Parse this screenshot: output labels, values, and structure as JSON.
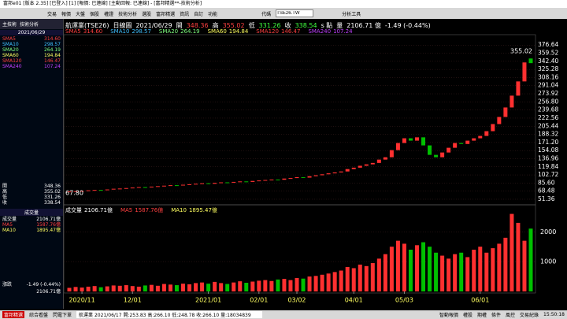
{
  "window": {
    "title": "富邦e01 [版本 2.35] [已登入] [1] [報價: 已連線] [主動回報: 已連線] - [富邦精選**-技術分析]"
  },
  "menu": [
    "交易",
    "報價",
    "大盤",
    "個股",
    "權證",
    "技術分析",
    "選股",
    "富邦精選",
    "資訊",
    "自訂",
    "功能"
  ],
  "symbol_label": "代碼",
  "symbol_input": "TSE26.TW",
  "tool": "分析工具",
  "left": {
    "tabs": [
      "主技術",
      "技術分析"
    ],
    "date": "2021/06/29",
    "sma": [
      {
        "name": "SMA5",
        "value": "314.60",
        "color": "#ff4040"
      },
      {
        "name": "SMA10",
        "value": "298.57",
        "color": "#40c0ff"
      },
      {
        "name": "SMA20",
        "value": "264.19",
        "color": "#80ff80"
      },
      {
        "name": "SMA60",
        "value": "194.84",
        "color": "#ffff60"
      },
      {
        "name": "SMA120",
        "value": "146.47",
        "color": "#ff4040"
      },
      {
        "name": "SMA240",
        "value": "107.24",
        "color": "#c040ff"
      }
    ],
    "ohlc": [
      {
        "label": "開",
        "value": "348.36"
      },
      {
        "label": "高",
        "value": "355.02"
      },
      {
        "label": "低",
        "value": "331.26"
      },
      {
        "label": "收",
        "value": "338.54"
      }
    ],
    "volume_title": "成交量",
    "vol": [
      {
        "name": "成交量",
        "value": "2106.71億",
        "color": "#ffffff"
      },
      {
        "name": "MA5",
        "value": "1587.76億",
        "color": "#ff4040"
      },
      {
        "name": "MA10",
        "value": "1895.47億",
        "color": "#ffff60"
      }
    ],
    "change": {
      "label": "漲跌",
      "value": "-1.49 (-0.44%)",
      "volume": "2106.71億"
    }
  },
  "header": [
    {
      "text": "航運業(TSE26)",
      "color": "#ffffff"
    },
    {
      "text": "日線圖",
      "color": "#ffffff"
    },
    {
      "text": "2021/06/29",
      "color": "#ffffff"
    },
    {
      "text": "開",
      "color": "#ffffff"
    },
    {
      "text": "348.36",
      "color": "#ff4040"
    },
    {
      "text": "高",
      "color": "#ffffff"
    },
    {
      "text": "355.02",
      "color": "#ff4040"
    },
    {
      "text": "低",
      "color": "#ffffff"
    },
    {
      "text": "331.26",
      "color": "#40ff40"
    },
    {
      "text": "收",
      "color": "#ffffff"
    },
    {
      "text": "338.54",
      "color": "#40ff40"
    },
    {
      "text": "s 點",
      "color": "#ffffff"
    },
    {
      "text": "量",
      "color": "#ffffff"
    },
    {
      "text": "2106.71 億",
      "color": "#ffffff"
    },
    {
      "text": "-1.49 (-0.44%)",
      "color": "#ffffff"
    }
  ],
  "chart": {
    "last_high": "355.02",
    "first_low": "67.80",
    "ylim": [
      43,
      392
    ],
    "yticks": [
      376.64,
      359.52,
      {
        "value": 342.4,
        "label": "342.40"
      },
      325.28,
      308.16,
      291.04,
      273.92,
      {
        "value": 256.8,
        "label": "256.80"
      },
      239.68,
      222.56,
      205.44,
      188.32,
      {
        "value": 171.2,
        "label": "171.20"
      },
      154.08,
      136.96,
      119.84,
      102.72,
      {
        "value": 85.6,
        "label": "85.60"
      },
      68.48,
      51.36
    ],
    "vlim": [
      0,
      2800
    ],
    "vticks": [
      2000,
      1000
    ],
    "up_color": "#ff3030",
    "down_color": "#00c000",
    "categories": [
      null,
      null,
      "2020/11",
      null,
      null,
      null,
      null,
      null,
      null,
      null,
      "12/01",
      null,
      null,
      null,
      null,
      null,
      null,
      null,
      null,
      null,
      null,
      null,
      "2021/01",
      null,
      null,
      null,
      null,
      null,
      null,
      null,
      "02/01",
      null,
      null,
      null,
      null,
      null,
      "03/02",
      null,
      null,
      null,
      null,
      null,
      null,
      null,
      null,
      "04/01",
      null,
      null,
      null,
      null,
      null,
      null,
      null,
      "05/03",
      null,
      null,
      null,
      null,
      null,
      null,
      null,
      null,
      null,
      null,
      null,
      "06/01",
      null,
      null,
      null,
      null,
      null,
      null,
      null,
      null
    ],
    "open": [
      67,
      67.8,
      68.5,
      69,
      70.2,
      71,
      70.5,
      72,
      73.5,
      74,
      75,
      76,
      77,
      76.5,
      78,
      79,
      80,
      81,
      80.5,
      82,
      83,
      84,
      85,
      84,
      86,
      87,
      86.5,
      88,
      89,
      88,
      90,
      91,
      92,
      93,
      92.5,
      95,
      96,
      98,
      97,
      100,
      102,
      104,
      106,
      108,
      110,
      115,
      118,
      122,
      125,
      128,
      135,
      140,
      155,
      170,
      180,
      175,
      182,
      165,
      145,
      140,
      150,
      160,
      170,
      168,
      175,
      180,
      185,
      195,
      210,
      225,
      245,
      270,
      300,
      348.36
    ],
    "close": [
      67.8,
      68.5,
      69,
      70.2,
      71,
      70.5,
      72,
      73.5,
      74,
      75,
      76,
      77,
      76.5,
      78,
      79,
      80,
      81,
      80.5,
      82,
      83,
      84,
      85,
      84,
      86,
      87,
      86.5,
      88,
      89,
      88,
      90,
      91,
      92,
      93,
      92.5,
      95,
      96,
      98,
      97,
      100,
      102,
      104,
      106,
      108,
      110,
      115,
      118,
      122,
      125,
      128,
      135,
      140,
      155,
      170,
      180,
      175,
      182,
      165,
      145,
      140,
      150,
      160,
      170,
      168,
      175,
      180,
      185,
      195,
      210,
      225,
      245,
      270,
      300,
      340.03,
      338.54
    ],
    "volume": [
      120,
      150,
      130,
      160,
      180,
      140,
      170,
      200,
      190,
      210,
      180,
      160,
      200,
      220,
      190,
      250,
      230,
      210,
      260,
      240,
      280,
      300,
      260,
      320,
      280,
      250,
      300,
      340,
      290,
      330,
      360,
      380,
      350,
      400,
      420,
      380,
      450,
      430,
      500,
      520,
      560,
      600,
      650,
      700,
      820,
      780,
      900,
      850,
      950,
      1100,
      1250,
      1500,
      1700,
      1600,
      1400,
      1550,
      1650,
      1500,
      1300,
      1200,
      1100,
      1250,
      1300,
      1150,
      1400,
      1500,
      1300,
      1450,
      1600,
      1800,
      2600,
      2300,
      1700,
      2106.71
    ]
  },
  "status": {
    "tabs": [
      "富邦精選",
      "綜合看盤",
      "閃電下單"
    ],
    "quote": "航運業 2021/06/17 開:253.83 高:266.10 低:248.78 收:266.10 量:18034839",
    "buttons": [
      "智動報價",
      "權股",
      "期權",
      "條件",
      "風控",
      "交易紀錄"
    ],
    "time": "15:50:18"
  }
}
